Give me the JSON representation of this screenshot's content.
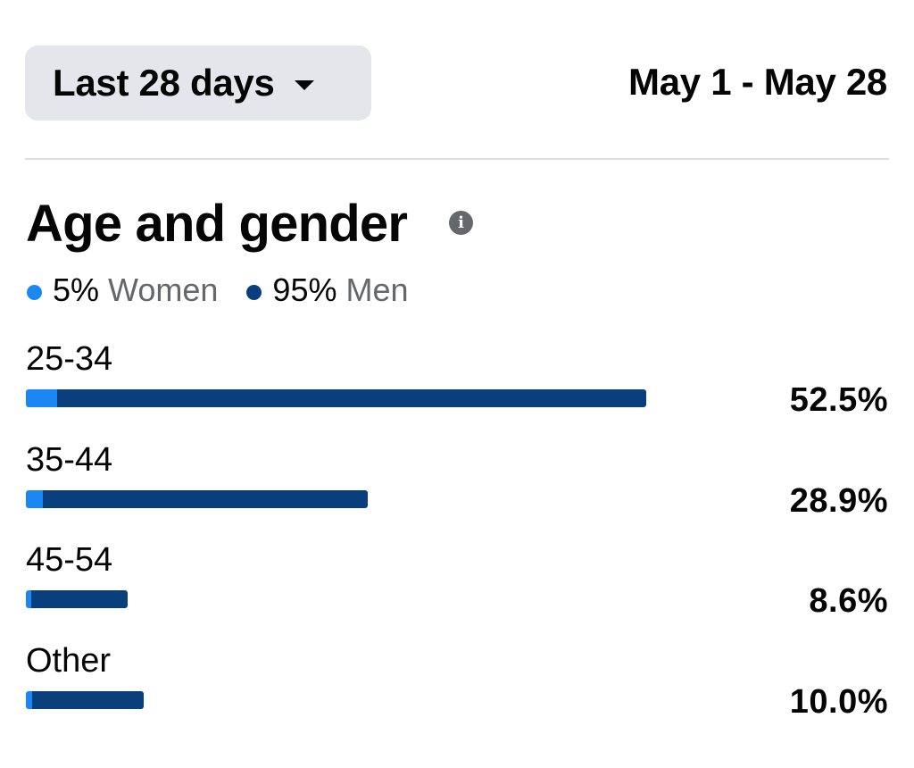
{
  "header": {
    "range_label": "Last 28 days",
    "date_range": "May 1 - May 28"
  },
  "section": {
    "title": "Age and gender"
  },
  "colors": {
    "women": "#1b87f5",
    "men": "#0a3f7e",
    "button_bg": "#e4e6eb",
    "muted_text": "#65676b"
  },
  "legend": [
    {
      "pct": "5%",
      "name": "Women",
      "color": "#1b87f5"
    },
    {
      "pct": "95%",
      "name": "Men",
      "color": "#0a3f7e"
    }
  ],
  "chart_data": {
    "type": "bar",
    "orientation": "horizontal",
    "stacked": true,
    "categories": [
      "25-34",
      "35-44",
      "45-54",
      "Other"
    ],
    "values": [
      52.5,
      28.9,
      8.6,
      10.0
    ],
    "value_labels": [
      "52.5%",
      "28.9%",
      "8.6%",
      "10.0%"
    ],
    "series": [
      {
        "name": "Women",
        "share_of_bar": [
          0.05,
          0.05,
          0.05,
          0.05
        ]
      },
      {
        "name": "Men",
        "share_of_bar": [
          0.95,
          0.95,
          0.95,
          0.95
        ]
      }
    ],
    "xlim": [
      0,
      75
    ]
  }
}
